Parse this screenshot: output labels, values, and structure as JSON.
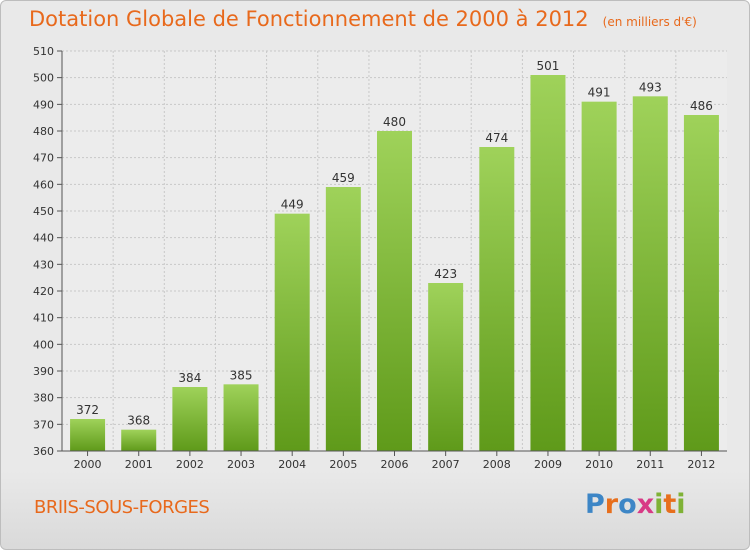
{
  "header": {
    "title": "Dotation Globale de Fonctionnement de 2000 à 2012",
    "unit": "(en milliers d'€)"
  },
  "footer": {
    "commune": "BRIIS-SOUS-FORGES",
    "brand_letters": [
      "P",
      "r",
      "o",
      "x",
      "i",
      "t",
      "i"
    ]
  },
  "colors": {
    "title": "#e8691c",
    "bar_top": "#9fd25a",
    "bar_bottom": "#5f9a1a",
    "grid": "#c8c8c8"
  },
  "chart_data": {
    "type": "bar",
    "title": "Dotation Globale de Fonctionnement de 2000 à 2012",
    "subtitle": "(en milliers d'€)",
    "xlabel": "",
    "ylabel": "",
    "categories": [
      "2000",
      "2001",
      "2002",
      "2003",
      "2004",
      "2005",
      "2006",
      "2007",
      "2008",
      "2009",
      "2010",
      "2011",
      "2012"
    ],
    "values": [
      372,
      368,
      384,
      385,
      449,
      459,
      480,
      423,
      474,
      501,
      491,
      493,
      486
    ],
    "ylim": [
      360,
      510
    ],
    "yticks": [
      360,
      370,
      380,
      390,
      400,
      410,
      420,
      430,
      440,
      450,
      460,
      470,
      480,
      490,
      500,
      510
    ],
    "grid": true,
    "data_labels": true
  }
}
